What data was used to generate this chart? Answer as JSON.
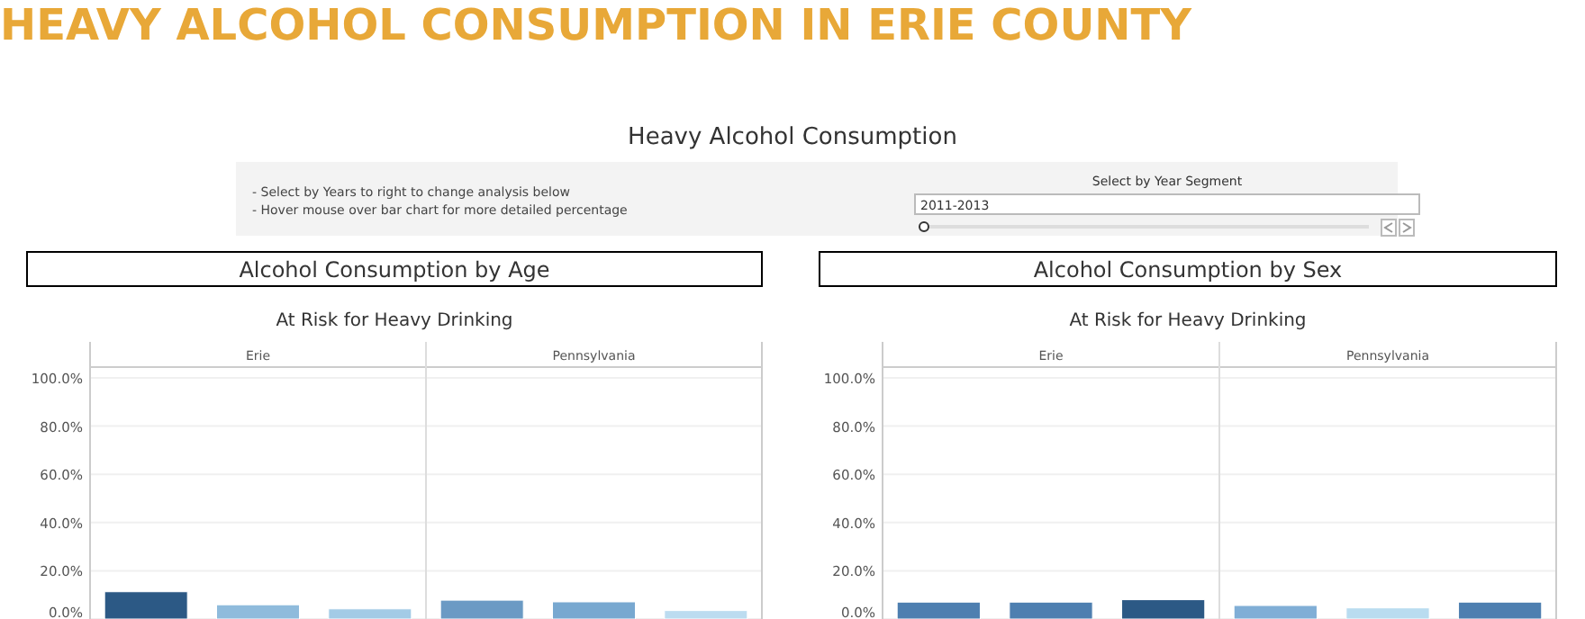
{
  "chart_data": [
    {
      "type": "other",
      "title": "HEAVY ALCOHOL CONSUMPTION IN ERIE COUNTY",
      "subtitle": "Heavy Alcohol Consumption",
      "annotations": [
        "- Select by Years to right to change analysis below",
        "- Hover mouse over bar chart for more detailed percentage",
        "Select by Year Segment",
        "2011-2013"
      ]
    },
    {
      "type": "bar",
      "title": "Alcohol Consumption by Age",
      "subtitle": "At Risk for Heavy Drinking",
      "annotations": [
        "Erie",
        "Pennsylvania"
      ],
      "categories": [
        null,
        null,
        null,
        null,
        null,
        null
      ],
      "values": [
        11.3,
        5.9,
        4.2,
        7.8,
        7.1,
        3.5
      ],
      "colors": [
        "#2c5985",
        "#8fbbdc",
        "#a3cbe6",
        "#6b9ac4",
        "#78a8d0",
        "#bcdcf0"
      ],
      "ylim": [
        0,
        100
      ],
      "yticks": [
        {
          "value": 0,
          "label": "0.0%"
        },
        {
          "value": 20,
          "label": "20.0%"
        },
        {
          "value": 40,
          "label": "40.0%"
        },
        {
          "value": 60,
          "label": "60.0%"
        },
        {
          "value": 80,
          "label": "80.0%"
        },
        {
          "value": 100,
          "label": "100.0%"
        }
      ],
      "grid": "y"
    },
    {
      "type": "bar",
      "title": "Alcohol Consumption by Sex",
      "subtitle": "At Risk for Heavy Drinking",
      "annotations": [
        "Erie",
        "Pennsylvania"
      ],
      "categories": [
        null,
        null,
        null,
        null,
        null,
        null
      ],
      "values": [
        7.0,
        7.0,
        8.0,
        5.6,
        4.6,
        7.0
      ],
      "colors": [
        "#4e7fb0",
        "#4e7fb0",
        "#2c5985",
        "#80aed6",
        "#b9dcf0",
        "#4e7fb0"
      ],
      "ylim": [
        0,
        100
      ],
      "yticks": [
        {
          "value": 0,
          "label": "0.0%"
        },
        {
          "value": 20,
          "label": "20.0%"
        },
        {
          "value": 40,
          "label": "40.0%"
        },
        {
          "value": 60,
          "label": "60.0%"
        },
        {
          "value": 80,
          "label": "80.0%"
        },
        {
          "value": 100,
          "label": "100.0%"
        }
      ],
      "grid": "y"
    }
  ]
}
